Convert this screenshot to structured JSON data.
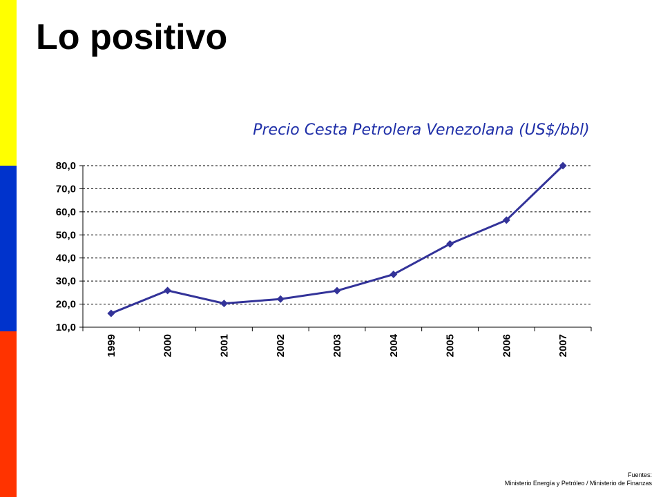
{
  "slide": {
    "title": "Lo positivo",
    "flag_colors": [
      "#ffff00",
      "#0033cc",
      "#ff3300"
    ]
  },
  "source": {
    "label": "Fuentes:",
    "text": "Ministerio Energía y Petróleo / Ministerio de Finanzas"
  },
  "chart_data": {
    "type": "line",
    "title": "Precio Cesta Petrolera Venezolana (US$/bbl)",
    "xlabel": "",
    "ylabel": "",
    "categories": [
      "1999",
      "2000",
      "2001",
      "2002",
      "2003",
      "2004",
      "2005",
      "2006",
      "2007"
    ],
    "series": [
      {
        "values": [
          16.0,
          25.9,
          20.3,
          22.2,
          25.8,
          32.9,
          46.1,
          56.4,
          80.0
        ]
      }
    ],
    "ylim": [
      10,
      80
    ],
    "yticks": [
      10,
      20,
      30,
      40,
      50,
      60,
      70,
      80
    ],
    "ytick_labels": [
      "10,0",
      "20,0",
      "30,0",
      "40,0",
      "50,0",
      "60,0",
      "70,0",
      "80,0"
    ],
    "grid": true,
    "line_color": "#333399",
    "marker": "diamond"
  }
}
